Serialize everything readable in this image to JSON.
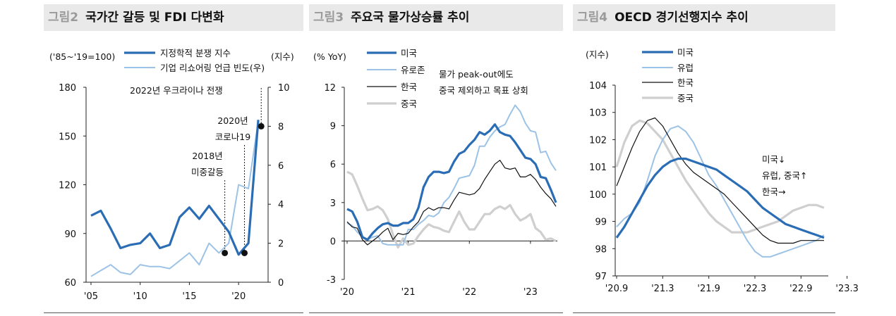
{
  "panels": {
    "p2": {
      "num": "그림2",
      "title": "국가간 갈등 및 FDI 다변화"
    },
    "p3": {
      "num": "그림3",
      "title": "주요국 물가상승률 추이"
    },
    "p4": {
      "num": "그림4",
      "title": "OECD 경기선행지수 추이"
    }
  },
  "colors": {
    "dark_blue": "#2a6db5",
    "light_blue": "#9cc3e6",
    "black": "#111111",
    "gray": "#cfcfcf"
  },
  "chart_data": [
    {
      "type": "line",
      "left_unit_label": "('85~'19=100)",
      "right_unit_label": "(지수)",
      "y_left": {
        "ticks": [
          60,
          90,
          120,
          150,
          180
        ],
        "range": [
          60,
          180
        ]
      },
      "y_right": {
        "ticks": [
          0,
          2,
          4,
          6,
          8,
          10
        ],
        "range": [
          0,
          10
        ]
      },
      "x_ticks": [
        "'05",
        "'10",
        "'15",
        "'20"
      ],
      "series": [
        {
          "name": "지정학적 분쟁 지수",
          "axis": "left",
          "color": "#2a6db5",
          "x": [
            2005,
            2006,
            2007,
            2008,
            2009,
            2010,
            2011,
            2012,
            2013,
            2014,
            2015,
            2016,
            2017,
            2018,
            2019,
            2020,
            2021,
            2022
          ],
          "values": [
            101,
            104,
            93,
            81,
            83,
            84,
            90,
            81,
            83,
            100,
            106,
            99,
            107,
            99,
            91,
            77,
            84,
            160
          ]
        },
        {
          "name": "기업 리쇼어링 언급 빈도(우)",
          "axis": "right",
          "color": "#9cc3e6",
          "x": [
            2005,
            2006,
            2007,
            2008,
            2009,
            2010,
            2011,
            2012,
            2013,
            2014,
            2015,
            2016,
            2017,
            2018,
            2019,
            2020,
            2021,
            2022
          ],
          "values": [
            0.3,
            0.6,
            0.9,
            0.5,
            0.4,
            0.9,
            0.8,
            0.8,
            0.7,
            1.1,
            1.5,
            0.9,
            2.0,
            1.5,
            2.0,
            5.0,
            4.8,
            8.3
          ]
        }
      ],
      "annotations": [
        {
          "label_lines": [
            "2022년 우크라이나 전쟁"
          ],
          "x": 2022,
          "y_right": 8.0
        },
        {
          "label_lines": [
            "2020년",
            "코로나19"
          ],
          "x": 2020,
          "y_right": 1.5
        },
        {
          "label_lines": [
            "2018년",
            "미중갈등"
          ],
          "x": 2018,
          "y_right": 1.5
        }
      ]
    },
    {
      "type": "line",
      "y_unit_label": "(% YoY)",
      "y": {
        "ticks": [
          -3,
          0,
          3,
          6,
          9,
          12
        ],
        "range": [
          -3,
          12
        ]
      },
      "x_ticks": [
        "'20",
        "'21",
        "'22",
        "'23"
      ],
      "x_start": "2020-01",
      "annotation": [
        "물가 peak-out에도",
        "중국 제외하고 목표 상회"
      ],
      "series": [
        {
          "name": "미국",
          "color": "#2a6db5",
          "width": 3.2,
          "values": [
            2.5,
            2.3,
            1.5,
            0.3,
            0.1,
            0.6,
            1.0,
            1.3,
            1.4,
            1.2,
            1.2,
            1.4,
            1.4,
            1.7,
            2.6,
            4.2,
            5.0,
            5.4,
            5.4,
            5.3,
            5.4,
            6.2,
            6.8,
            7.0,
            7.5,
            7.9,
            8.5,
            8.3,
            8.6,
            9.1,
            8.5,
            8.3,
            8.2,
            7.7,
            7.1,
            6.5,
            6.4,
            6.0,
            5.0,
            4.9,
            4.0,
            3.0
          ]
        },
        {
          "name": "유로존",
          "color": "#9cc3e6",
          "width": 2,
          "values": [
            1.4,
            1.2,
            0.7,
            0.3,
            0.1,
            0.3,
            0.4,
            -0.2,
            -0.3,
            -0.3,
            -0.3,
            -0.3,
            0.9,
            0.9,
            1.3,
            1.6,
            2.0,
            1.9,
            2.2,
            3.0,
            3.4,
            4.1,
            4.9,
            5.0,
            5.1,
            5.9,
            7.4,
            7.4,
            8.1,
            8.6,
            8.9,
            9.1,
            9.9,
            10.6,
            10.1,
            9.2,
            8.6,
            8.5,
            6.9,
            7.0,
            6.1,
            5.5
          ]
        },
        {
          "name": "한국",
          "color": "#111111",
          "width": 1.2,
          "values": [
            1.5,
            1.1,
            1.0,
            0.1,
            -0.3,
            0.0,
            0.3,
            0.7,
            1.0,
            0.1,
            0.6,
            0.5,
            0.6,
            1.1,
            1.5,
            2.3,
            2.6,
            2.4,
            2.6,
            2.6,
            2.5,
            3.2,
            3.8,
            3.7,
            3.6,
            3.7,
            4.1,
            4.8,
            5.4,
            6.0,
            6.3,
            5.7,
            5.6,
            5.7,
            5.0,
            5.0,
            5.2,
            4.8,
            4.2,
            3.7,
            3.3,
            2.7
          ]
        },
        {
          "name": "중국",
          "color": "#cfcfcf",
          "width": 3.2,
          "values": [
            5.4,
            5.2,
            4.3,
            3.3,
            2.4,
            2.5,
            2.7,
            2.4,
            1.7,
            0.5,
            -0.5,
            0.2,
            -0.3,
            -0.2,
            0.4,
            0.9,
            1.3,
            1.1,
            1.0,
            0.8,
            0.7,
            1.5,
            2.3,
            1.5,
            0.9,
            0.9,
            1.5,
            2.1,
            2.1,
            2.5,
            2.7,
            2.5,
            2.8,
            2.1,
            1.6,
            1.8,
            2.1,
            1.0,
            0.7,
            0.1,
            0.2,
            0.0
          ]
        }
      ]
    },
    {
      "type": "line",
      "y_unit_label": "(지수)",
      "y": {
        "ticks": [
          97,
          98,
          99,
          100,
          101,
          102,
          103,
          104
        ],
        "range": [
          97,
          104
        ]
      },
      "x_ticks": [
        "'20.9",
        "'21.3",
        "'21.9",
        "'22.3",
        "'22.9",
        "'23.3"
      ],
      "x_start": "2020-09",
      "annotation": [
        "미국↓",
        "유럽, 중국↑",
        "한국→"
      ],
      "series": [
        {
          "name": "미국",
          "color": "#2a6db5",
          "width": 3.2,
          "values": [
            98.4,
            98.8,
            99.3,
            99.8,
            100.3,
            100.7,
            101.0,
            101.2,
            101.3,
            101.3,
            101.2,
            101.1,
            101.0,
            100.9,
            100.7,
            100.5,
            100.3,
            100.1,
            99.8,
            99.5,
            99.3,
            99.1,
            98.9,
            98.8,
            98.7,
            98.6,
            98.5,
            98.4
          ]
        },
        {
          "name": "유럽",
          "color": "#9cc3e6",
          "width": 2,
          "values": [
            98.8,
            99.1,
            99.3,
            99.7,
            100.5,
            101.4,
            102.0,
            102.4,
            102.5,
            102.3,
            101.9,
            101.3,
            100.7,
            100.3,
            99.8,
            99.3,
            98.8,
            98.3,
            97.9,
            97.7,
            97.7,
            97.8,
            97.9,
            98.0,
            98.1,
            98.2,
            98.3,
            98.5
          ]
        },
        {
          "name": "한국",
          "color": "#111111",
          "width": 1.2,
          "values": [
            100.3,
            101.0,
            101.7,
            102.3,
            102.7,
            102.8,
            102.5,
            102.0,
            101.5,
            101.1,
            100.8,
            100.6,
            100.4,
            100.2,
            100.0,
            99.7,
            99.4,
            99.1,
            98.8,
            98.5,
            98.3,
            98.2,
            98.2,
            98.2,
            98.3,
            98.3,
            98.3,
            98.3
          ]
        },
        {
          "name": "중국",
          "color": "#cfcfcf",
          "width": 3.2,
          "values": [
            101.0,
            101.9,
            102.5,
            102.7,
            102.6,
            102.3,
            102.0,
            101.5,
            101.0,
            100.5,
            100.1,
            99.7,
            99.3,
            99.0,
            98.8,
            98.6,
            98.6,
            98.6,
            98.7,
            98.8,
            98.9,
            99.0,
            99.2,
            99.4,
            99.5,
            99.6,
            99.6,
            99.5
          ]
        }
      ]
    }
  ]
}
